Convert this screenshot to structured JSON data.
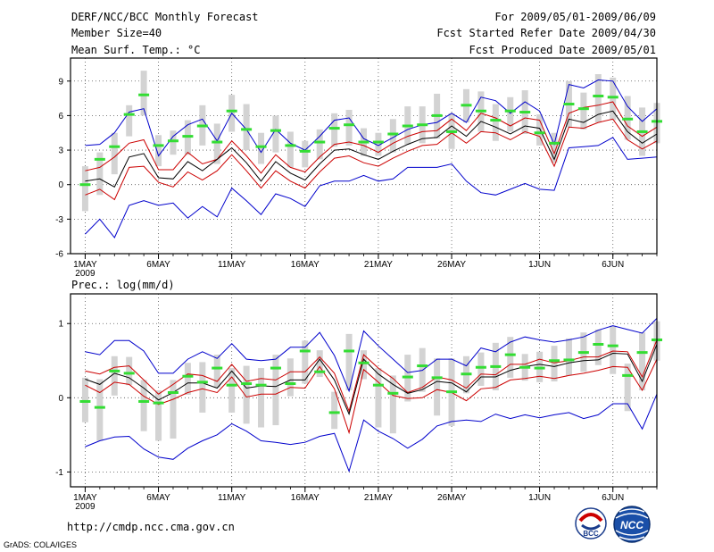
{
  "header": {
    "title": "DERF/NCC/BCC Monthly Forecast",
    "member_size": "Member Size=40",
    "variable": "Mean Surf. Temp.: °C",
    "period": "For 2009/05/01-2009/06/09",
    "refer_date": "Fcst Started Refer Date 2009/04/30",
    "produced_date": "Fcst Produced Date 2009/05/01"
  },
  "footer": {
    "url": "http://cmdp.ncc.cma.gov.cn",
    "grads": "GrADS: COLA/IGES",
    "logo_bcc": "BCC",
    "logo_ncc": "NCC"
  },
  "colors": {
    "ensemble_bar": "#d3d3d3",
    "mean": "#000000",
    "spread": "#cc0000",
    "envelope": "#0000cc",
    "marker": "#33dd33"
  },
  "chart_data": [
    {
      "type": "line",
      "title": "Mean Surf. Temp.: °C",
      "xlabel": "",
      "ylabel": "°C",
      "ylim": [
        -6,
        11
      ],
      "yticks": [
        -6,
        -3,
        0,
        3,
        6,
        9
      ],
      "xtick_labels": [
        "1MAY",
        "6MAY",
        "11MAY",
        "16MAY",
        "21MAY",
        "26MAY",
        "1JUN",
        "6JUN"
      ],
      "xtick_days": [
        1,
        6,
        11,
        16,
        21,
        26,
        32,
        37
      ],
      "year_label": "2009",
      "x_range": [
        0,
        40
      ],
      "grid": true,
      "days": [
        1,
        2,
        3,
        4,
        5,
        6,
        7,
        8,
        9,
        10,
        11,
        12,
        13,
        14,
        15,
        16,
        17,
        18,
        19,
        20,
        21,
        22,
        23,
        24,
        25,
        26,
        27,
        28,
        29,
        30,
        31,
        32,
        33,
        34,
        35,
        36,
        37,
        38,
        39,
        40
      ],
      "series": [
        {
          "name": "max",
          "values": [
            3.4,
            3.5,
            4.5,
            6.3,
            6.6,
            2.5,
            4.2,
            5.2,
            5.7,
            3.8,
            6.2,
            4.8,
            2.8,
            4.8,
            3.6,
            3.0,
            4.2,
            5.6,
            5.8,
            4.0,
            3.4,
            4.1,
            4.8,
            5.2,
            5.4,
            6.2,
            5.4,
            7.6,
            7.3,
            6.2,
            7.2,
            6.4,
            3.5,
            8.7,
            8.4,
            9.1,
            9.0,
            6.8,
            5.5,
            6.6
          ]
        },
        {
          "name": "upper",
          "values": [
            1.2,
            1.5,
            2.4,
            3.6,
            3.9,
            1.3,
            1.3,
            2.8,
            1.8,
            2.2,
            3.8,
            2.5,
            1.0,
            2.6,
            1.5,
            1.1,
            2.4,
            3.5,
            3.7,
            3.4,
            2.8,
            3.6,
            4.2,
            4.6,
            4.7,
            5.7,
            4.7,
            6.2,
            5.8,
            5.1,
            5.8,
            5.6,
            2.7,
            6.2,
            6.7,
            6.9,
            7.2,
            5.1,
            4.2,
            5.0
          ]
        },
        {
          "name": "mean",
          "values": [
            0.3,
            0.5,
            -0.2,
            2.4,
            2.7,
            0.6,
            0.5,
            2.0,
            1.2,
            2.2,
            3.2,
            1.9,
            0.3,
            2.0,
            1.0,
            0.4,
            1.8,
            3.0,
            3.1,
            2.6,
            2.2,
            2.9,
            3.5,
            4.0,
            4.1,
            5.1,
            4.2,
            5.5,
            5.0,
            4.4,
            5.1,
            4.9,
            2.2,
            5.7,
            5.4,
            6.1,
            6.4,
            4.6,
            3.6,
            4.4
          ]
        },
        {
          "name": "lower",
          "values": [
            -0.9,
            -0.4,
            -1.3,
            1.5,
            1.6,
            0.2,
            -0.2,
            1.1,
            0.4,
            1.2,
            2.6,
            1.2,
            -0.3,
            1.2,
            0.3,
            -0.3,
            1.1,
            2.3,
            2.5,
            1.9,
            1.6,
            2.3,
            2.9,
            3.4,
            3.5,
            4.5,
            3.6,
            4.6,
            4.5,
            3.9,
            4.6,
            4.2,
            1.6,
            5.0,
            4.9,
            5.4,
            5.7,
            3.9,
            3.1,
            3.8
          ]
        },
        {
          "name": "min",
          "values": [
            -4.3,
            -3.0,
            -4.6,
            -1.8,
            -1.4,
            -1.8,
            -1.6,
            -2.9,
            -1.9,
            -2.8,
            -0.3,
            -1.4,
            -2.6,
            -0.8,
            -1.2,
            -1.9,
            -0.1,
            0.3,
            0.3,
            0.8,
            0.3,
            0.5,
            1.5,
            1.5,
            1.5,
            1.8,
            0.3,
            -0.7,
            -0.9,
            -0.4,
            0.1,
            -0.4,
            -0.5,
            3.2,
            3.3,
            3.4,
            4.1,
            2.2,
            2.3,
            2.4
          ]
        }
      ],
      "markers": [
        0.0,
        2.2,
        3.3,
        6.1,
        7.8,
        3.4,
        3.8,
        4.2,
        5.1,
        3.7,
        6.4,
        4.8,
        3.3,
        4.7,
        3.4,
        2.9,
        3.7,
        4.9,
        5.2,
        3.7,
        3.7,
        4.4,
        5.1,
        5.2,
        6.0,
        4.6,
        6.9,
        6.4,
        5.6,
        6.4,
        6.3,
        4.5,
        3.6,
        7.0,
        6.6,
        7.7,
        7.6,
        5.7,
        4.6,
        5.5
      ],
      "bar_low": [
        -2.3,
        -0.9,
        0.9,
        4.2,
        6.0,
        1.6,
        2.6,
        2.6,
        3.4,
        1.8,
        4.6,
        3.0,
        1.8,
        2.8,
        1.5,
        1.5,
        2.2,
        3.3,
        3.4,
        2.5,
        2.5,
        2.8,
        3.5,
        3.6,
        4.0,
        3.1,
        5.4,
        4.6,
        3.8,
        4.6,
        4.4,
        3.4,
        1.9,
        5.0,
        4.8,
        5.4,
        5.6,
        3.9,
        2.5,
        3.6
      ],
      "bar_high": [
        1.6,
        2.8,
        4.5,
        6.9,
        9.9,
        4.3,
        4.7,
        5.6,
        6.9,
        5.3,
        7.8,
        7.0,
        4.5,
        6.0,
        4.6,
        3.8,
        4.8,
        6.2,
        6.5,
        4.9,
        4.5,
        5.7,
        6.8,
        6.8,
        7.9,
        6.2,
        8.3,
        8.1,
        7.0,
        7.6,
        8.2,
        6.1,
        4.5,
        9.0,
        8.0,
        9.6,
        9.3,
        7.7,
        6.7,
        7.1
      ]
    },
    {
      "type": "line",
      "title": "Prec.: log(mm/d)",
      "xlabel": "",
      "ylabel": "log(mm/d)",
      "ylim": [
        -1.2,
        1.4
      ],
      "yticks": [
        -1,
        0,
        1
      ],
      "xtick_labels": [
        "1MAY",
        "6MAY",
        "11MAY",
        "16MAY",
        "21MAY",
        "26MAY",
        "1JUN",
        "6JUN"
      ],
      "xtick_days": [
        1,
        6,
        11,
        16,
        21,
        26,
        32,
        37
      ],
      "year_label": "2009",
      "x_range": [
        0,
        40
      ],
      "grid": true,
      "days": [
        1,
        2,
        3,
        4,
        5,
        6,
        7,
        8,
        9,
        10,
        11,
        12,
        13,
        14,
        15,
        16,
        17,
        18,
        19,
        20,
        21,
        22,
        23,
        24,
        25,
        26,
        27,
        28,
        29,
        30,
        31,
        32,
        33,
        34,
        35,
        36,
        37,
        38,
        39,
        40
      ],
      "series": [
        {
          "name": "max",
          "values": [
            0.62,
            0.58,
            0.77,
            0.77,
            0.63,
            0.33,
            0.33,
            0.52,
            0.62,
            0.53,
            0.73,
            0.52,
            0.5,
            0.52,
            0.68,
            0.68,
            0.88,
            0.57,
            0.09,
            0.9,
            0.7,
            0.52,
            0.34,
            0.37,
            0.52,
            0.52,
            0.43,
            0.67,
            0.62,
            0.75,
            0.82,
            0.78,
            0.75,
            0.78,
            0.82,
            0.91,
            0.97,
            0.92,
            0.87,
            1.07
          ]
        },
        {
          "name": "upper",
          "values": [
            0.36,
            0.32,
            0.41,
            0.43,
            0.24,
            0.05,
            0.18,
            0.32,
            0.3,
            0.22,
            0.45,
            0.22,
            0.26,
            0.24,
            0.35,
            0.35,
            0.55,
            0.33,
            -0.18,
            0.58,
            0.4,
            0.26,
            0.07,
            0.14,
            0.28,
            0.24,
            0.13,
            0.32,
            0.31,
            0.45,
            0.45,
            0.52,
            0.47,
            0.5,
            0.55,
            0.55,
            0.63,
            0.62,
            0.28,
            0.78
          ]
        },
        {
          "name": "mean",
          "values": [
            0.25,
            0.18,
            0.33,
            0.27,
            0.13,
            -0.03,
            0.07,
            0.2,
            0.2,
            0.13,
            0.36,
            0.13,
            0.16,
            0.15,
            0.24,
            0.24,
            0.52,
            0.24,
            -0.22,
            0.52,
            0.32,
            0.18,
            0.06,
            0.11,
            0.22,
            0.2,
            0.08,
            0.28,
            0.28,
            0.37,
            0.42,
            0.45,
            0.42,
            0.47,
            0.5,
            0.51,
            0.6,
            0.59,
            0.22,
            0.72
          ]
        },
        {
          "name": "lower",
          "values": [
            0.17,
            0.07,
            0.21,
            0.18,
            0.02,
            -0.09,
            -0.02,
            0.07,
            0.12,
            0.07,
            0.28,
            0.01,
            0.05,
            0.05,
            0.14,
            0.13,
            0.42,
            0.12,
            -0.47,
            0.38,
            0.21,
            0.03,
            -0.01,
            0.0,
            0.11,
            0.07,
            -0.04,
            0.12,
            0.14,
            0.24,
            0.26,
            0.29,
            0.26,
            0.3,
            0.33,
            0.37,
            0.42,
            0.41,
            0.1,
            0.52
          ]
        },
        {
          "name": "min",
          "values": [
            -0.66,
            -0.58,
            -0.53,
            -0.52,
            -0.69,
            -0.8,
            -0.83,
            -0.68,
            -0.58,
            -0.5,
            -0.35,
            -0.45,
            -0.58,
            -0.6,
            -0.63,
            -0.6,
            -0.52,
            -0.48,
            -0.99,
            -0.3,
            -0.45,
            -0.55,
            -0.68,
            -0.56,
            -0.38,
            -0.32,
            -0.3,
            -0.32,
            -0.22,
            -0.28,
            -0.23,
            -0.27,
            -0.23,
            -0.2,
            -0.28,
            -0.23,
            -0.08,
            -0.08,
            -0.42,
            0.05
          ]
        }
      ],
      "markers": [
        -0.05,
        -0.13,
        0.36,
        0.33,
        -0.05,
        -0.07,
        0.07,
        0.29,
        0.21,
        0.4,
        0.17,
        0.19,
        0.17,
        0.4,
        0.19,
        0.63,
        0.35,
        -0.2,
        0.63,
        0.47,
        0.17,
        0.06,
        0.28,
        0.43,
        0.27,
        0.08,
        0.32,
        0.41,
        0.42,
        0.58,
        0.41,
        0.4,
        0.5,
        0.51,
        0.61,
        0.72,
        0.7,
        0.3,
        0.61,
        0.78
      ],
      "bar_low": [
        -0.33,
        -0.58,
        0.03,
        0.17,
        -0.45,
        -0.58,
        -0.55,
        0.04,
        -0.2,
        0.14,
        -0.2,
        -0.35,
        -0.4,
        -0.37,
        0.02,
        0.19,
        0.28,
        -0.42,
        0.1,
        0.25,
        -0.4,
        -0.48,
        -0.05,
        0.08,
        -0.24,
        -0.38,
        0.06,
        0.16,
        0.1,
        0.27,
        0.23,
        0.21,
        0.22,
        0.3,
        0.35,
        0.44,
        0.32,
        -0.18,
        0.1,
        0.5
      ],
      "bar_high": [
        0.27,
        0.25,
        0.56,
        0.55,
        0.24,
        0.1,
        0.24,
        0.47,
        0.48,
        0.58,
        0.4,
        0.43,
        0.4,
        0.58,
        0.53,
        0.77,
        0.64,
        0.08,
        0.86,
        0.64,
        0.4,
        0.3,
        0.58,
        0.67,
        0.53,
        0.53,
        0.56,
        0.61,
        0.74,
        0.82,
        0.59,
        0.62,
        0.7,
        0.8,
        0.88,
        0.92,
        0.97,
        0.46,
        0.88,
        1.03
      ]
    }
  ]
}
